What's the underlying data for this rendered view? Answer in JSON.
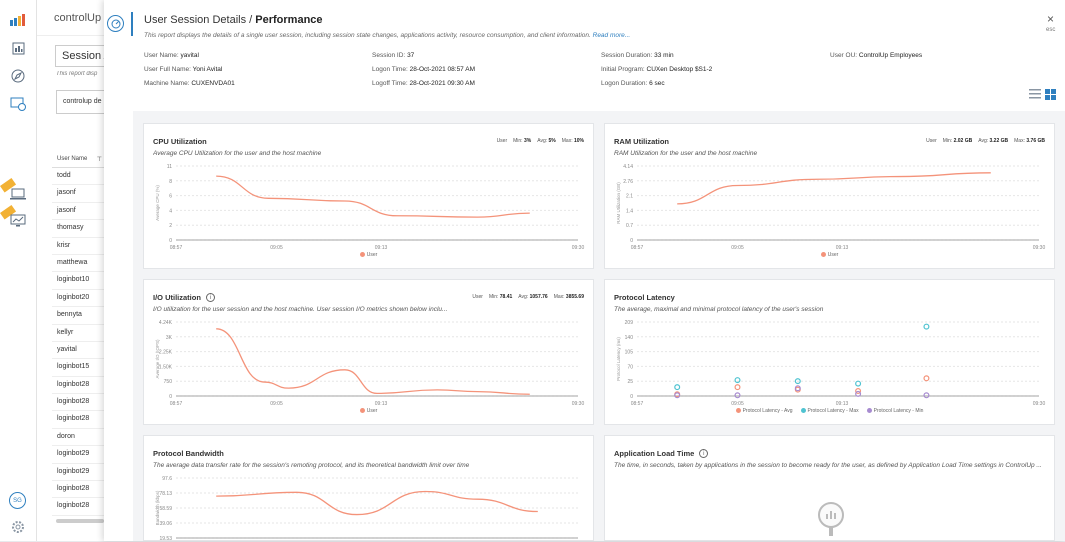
{
  "background": {
    "title": "controlUp d",
    "session_box": "Session A",
    "session_desc": "This report disp",
    "controlup_box": "controlup de",
    "user_column": "User Name",
    "users": [
      "todd",
      "jasonf",
      "jasonf",
      "thomasy",
      "krisr",
      "matthewa",
      "loginbot10",
      "loginbot20",
      "bennyta",
      "kellyr",
      "yavital",
      "loginbot15",
      "loginbot28",
      "loginbot28",
      "loginbot28",
      "doron",
      "loginbot29",
      "loginbot29",
      "loginbot28",
      "loginbot28"
    ]
  },
  "nav": {
    "icons": [
      "bar-chart-icon",
      "report-icon",
      "compass-icon",
      "monitor-clock-icon",
      "laptop-icon",
      "desktop-chart-icon",
      "avatar",
      "settings-icon"
    ],
    "avatar_initials": "SG"
  },
  "modal": {
    "title_prefix": "User Session Details / ",
    "title_bold": "Performance",
    "description": "This report displays the details of a single user session, including session state changes, applications activity, resource consumption, and client information. ",
    "read_more": "Read more...",
    "close": "×",
    "esc": "esc"
  },
  "info": {
    "user_name_label": "User Name:",
    "user_name": "yavital",
    "user_full_name_label": "User Full Name:",
    "user_full_name": "Yoni Avital",
    "machine_name_label": "Machine Name:",
    "machine_name": "CUXENVDA01",
    "session_id_label": "Session ID:",
    "session_id": "37",
    "logon_time_label": "Logon Time:",
    "logon_time": "28-Oct-2021 08:57 AM",
    "logoff_time_label": "Logoff Time:",
    "logoff_time": "28-Oct-2021 09:30 AM",
    "session_duration_label": "Session Duration:",
    "session_duration": "33 min",
    "initial_program_label": "Initial Program:",
    "initial_program": "CUXen Desktop $S1-2",
    "logon_duration_label": "Logon Duration:",
    "logon_duration": "6 sec",
    "user_ou_label": "User OU:",
    "user_ou": "ControlUp Employees"
  },
  "cards": {
    "cpu": {
      "title": "CPU Utilization",
      "desc": "Average CPU Utilization for the user and the host machine",
      "stat_user": "User",
      "min_label": "Min:",
      "min": "3%",
      "avg_label": "Avg:",
      "avg": "5%",
      "max_label": "Max:",
      "max": "10%",
      "legend": "User"
    },
    "ram": {
      "title": "RAM Utilization",
      "desc": "RAM Utilization for the user and the host machine",
      "stat_user": "User",
      "min_label": "Min:",
      "min": "2.02 GB",
      "avg_label": "Avg:",
      "avg": "3.22 GB",
      "max_label": "Max:",
      "max": "3.76 GB",
      "legend": "User"
    },
    "io": {
      "title": "I/O Utilization",
      "desc": "I/O utilization for the user session and the host machine. User session I/O metrics shown below inclu...",
      "stat_user": "User",
      "min_label": "Min:",
      "min": "78.41",
      "avg_label": "Avg:",
      "avg": "1057.76",
      "max_label": "Max:",
      "max": "3855.69",
      "legend": "User"
    },
    "latency": {
      "title": "Protocol Latency",
      "desc": "The average, maximal and minimal protocol latency of the user's session",
      "legend_avg": "Protocol Latency - Avg",
      "legend_max": "Protocol Latency - Max",
      "legend_min": "Protocol Latency - Min"
    },
    "bandwidth": {
      "title": "Protocol Bandwidth",
      "desc": "The average data transfer rate for the session's remoting protocol, and its theoretical bandwidth limit over time"
    },
    "apptime": {
      "title": "Application Load Time",
      "desc": "The time, in seconds, taken by applications in the session to become ready for the user, as defined by Application Load Time settings in ControlUp ..."
    }
  },
  "colors": {
    "accent": "#2e7fbf",
    "series_user": "#f4937a",
    "latency_avg": "#f4937a",
    "latency_max": "#4fc3d1",
    "latency_min": "#a78bd0"
  },
  "chart_data": [
    {
      "id": "cpu",
      "type": "line",
      "ylabel": "Average CPU (%)",
      "y_ticks": [
        "0",
        "2",
        "4",
        "6",
        "8",
        "11"
      ],
      "ylim": [
        0,
        11
      ],
      "x_ticks": [
        "08:57",
        "09:05",
        "09:13",
        "09:30"
      ],
      "series": [
        {
          "name": "User",
          "x": [
            0.1,
            0.23,
            0.42,
            0.55,
            0.75,
            0.88
          ],
          "y": [
            9.5,
            6.2,
            5.8,
            3.6,
            3.4,
            4.0
          ]
        }
      ]
    },
    {
      "id": "ram",
      "type": "line",
      "ylabel": "RAM Utilization (GB)",
      "y_ticks": [
        "0",
        "0.7",
        "1.4",
        "2.1",
        "2.76",
        "4.14"
      ],
      "ylim": [
        0,
        4.14
      ],
      "x_ticks": [
        "08:57",
        "09:05",
        "09:13",
        "09:30"
      ],
      "series": [
        {
          "name": "User",
          "x": [
            0.1,
            0.25,
            0.45,
            0.65,
            0.88
          ],
          "y": [
            2.02,
            3.05,
            3.4,
            3.55,
            3.76
          ]
        }
      ]
    },
    {
      "id": "io",
      "type": "line",
      "ylabel": "Average I/O (IOPS)",
      "y_ticks": [
        "0",
        "750",
        "1.50K",
        "2.25K",
        "3K",
        "4.24K"
      ],
      "ylim": [
        0,
        4240
      ],
      "x_ticks": [
        "08:57",
        "09:05",
        "09:13",
        "09:30"
      ],
      "series": [
        {
          "name": "User",
          "x": [
            0.1,
            0.22,
            0.28,
            0.42,
            0.5,
            0.65,
            0.75,
            0.88
          ],
          "y": [
            3850,
            800,
            450,
            1500,
            150,
            350,
            250,
            100
          ]
        }
      ]
    },
    {
      "id": "latency",
      "type": "scatter",
      "ylabel": "Protocol Latency (ms)",
      "y_ticks": [
        "0",
        "25",
        "70",
        "105",
        "140",
        "209"
      ],
      "ylim": [
        0,
        209
      ],
      "x_ticks": [
        "08:57",
        "09:05",
        "09:13",
        "09:30"
      ],
      "series": [
        {
          "name": "Protocol Latency - Avg",
          "x": [
            0.1,
            0.25,
            0.4,
            0.55,
            0.72
          ],
          "y": [
            5,
            25,
            18,
            14,
            50
          ]
        },
        {
          "name": "Protocol Latency - Max",
          "x": [
            0.1,
            0.25,
            0.4,
            0.55,
            0.72
          ],
          "y": [
            25,
            45,
            42,
            35,
            196
          ]
        },
        {
          "name": "Protocol Latency - Min",
          "x": [
            0.1,
            0.25,
            0.4,
            0.55,
            0.72
          ],
          "y": [
            2,
            2,
            22,
            6,
            2
          ]
        }
      ]
    },
    {
      "id": "bandwidth",
      "type": "line",
      "ylabel": "Bandwidth (kbps)",
      "y_ticks": [
        "19.53",
        "39.06",
        "58.59",
        "78.13",
        "97.6"
      ],
      "ylim": [
        19.53,
        97.6
      ],
      "series": [
        {
          "name": "",
          "x": [
            0.1,
            0.3,
            0.45,
            0.62,
            0.75,
            0.9
          ],
          "y": [
            74,
            79,
            50,
            80,
            70,
            54
          ]
        }
      ]
    }
  ]
}
